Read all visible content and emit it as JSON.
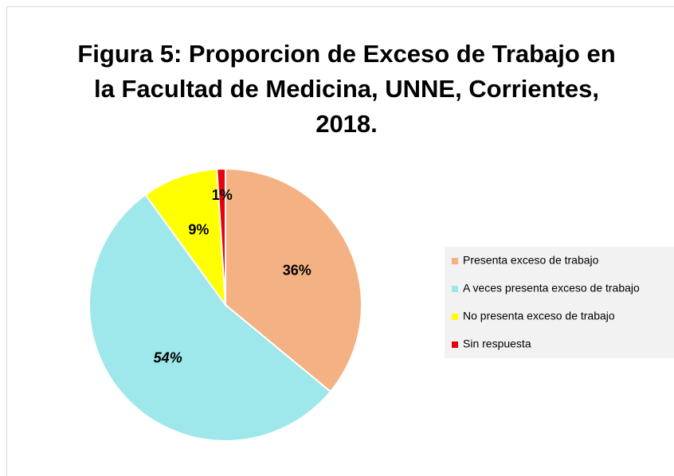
{
  "chart_data": {
    "type": "pie",
    "title": "Figura 5: Proporcion de Exceso de Trabajo en la Facultad de Medicina, UNNE, Corrientes, 2018.",
    "categories": [
      "Presenta exceso de trabajo",
      "A veces presenta exceso de trabajo",
      "No presenta exceso de trabajo",
      "Sin respuesta"
    ],
    "values": [
      36,
      54,
      9,
      1
    ],
    "value_labels": [
      "36%",
      "54%",
      "9%",
      "1%"
    ],
    "colors": [
      "#f4b183",
      "#9ee7eb",
      "#ffff00",
      "#e8000b"
    ],
    "legend": "right"
  }
}
